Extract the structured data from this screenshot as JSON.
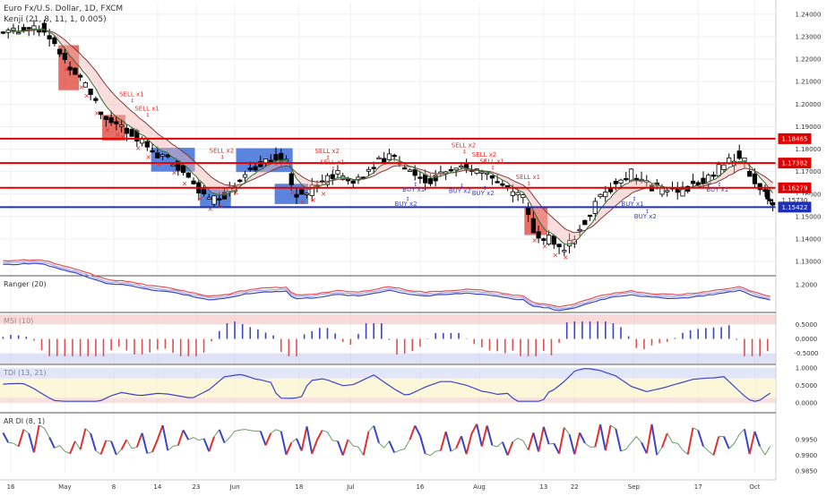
{
  "header": {
    "symbol": "Euro Fx/U.S. Dollar, 1D, FXCM",
    "indicator": "Kenji (21, 8, 11, 1, 0.005)"
  },
  "colors": {
    "bull": "#ffffff",
    "bear": "#000000",
    "wick": "#000000",
    "sell_zone": "#e2574c",
    "buy_zone": "#3d6fd8",
    "level_red": "#e00000",
    "level_blue": "#1f2fb5",
    "ema_slow": "#7a3b3b",
    "ema_fast": "#2e6e2e",
    "panel_red": "#f4c2c2",
    "panel_blue": "#c8cdf2",
    "up_bar": "#3a44c8",
    "down_bar": "#e05050"
  },
  "chart_data": [
    {
      "type": "candlestick",
      "title": "Euro Fx/U.S. Dollar, 1D, FXCM",
      "ylim": [
        1.1245,
        1.2455
      ],
      "y_ticks": [
        "1.24000",
        "1.23000",
        "1.22000",
        "1.21000",
        "1.20000",
        "1.19000",
        "1.18000",
        "1.17000",
        "1.16000",
        "1.15000",
        "1.14000",
        "1.13000"
      ],
      "x_ticks": [
        "16",
        "May",
        "8",
        "14",
        "23",
        "Jun",
        "18",
        "Jul",
        "16",
        "Aug",
        "13",
        "22",
        "Sep",
        "17",
        "Oct"
      ],
      "x_tick_index": [
        3,
        24,
        43,
        60,
        75,
        90,
        115,
        135,
        162,
        185,
        210,
        222,
        245,
        270,
        292
      ],
      "price_labels": [
        {
          "value": 1.18465,
          "text": "1.18465",
          "kind": "red"
        },
        {
          "value": 1.17382,
          "text": "1.17382",
          "kind": "red"
        },
        {
          "value": 1.16279,
          "text": "1.16279",
          "kind": "red"
        },
        {
          "value": 1.1573,
          "text": "1.15730",
          "kind": "plain"
        },
        {
          "value": 1.15422,
          "text": "1.15422",
          "kind": "blue"
        }
      ],
      "levels": [
        {
          "value": 1.18465,
          "color": "red"
        },
        {
          "value": 1.17382,
          "color": "red"
        },
        {
          "value": 1.16279,
          "color": "red"
        },
        {
          "value": 1.15422,
          "color": "blue"
        }
      ],
      "signals": [
        {
          "i": 50,
          "text": "SELL x1",
          "price": 1.2035,
          "kind": "sell"
        },
        {
          "i": 56,
          "text": "SELL x1",
          "price": 1.1972,
          "kind": "sell"
        },
        {
          "i": 85,
          "text": "SELL x2",
          "price": 1.1784,
          "kind": "sell"
        },
        {
          "i": 126,
          "text": "SELL x2",
          "price": 1.1782,
          "kind": "sell"
        },
        {
          "i": 128,
          "text": "SELL x1",
          "price": 1.1732,
          "kind": "sell"
        },
        {
          "i": 160,
          "text": "BUY x1",
          "price": 1.1612,
          "kind": "buy"
        },
        {
          "i": 157,
          "text": "BUY x2",
          "price": 1.1548,
          "kind": "buy"
        },
        {
          "i": 179,
          "text": "SELL x2",
          "price": 1.1808,
          "kind": "sell"
        },
        {
          "i": 187,
          "text": "SELL x2",
          "price": 1.1766,
          "kind": "sell"
        },
        {
          "i": 190,
          "text": "SELL x1",
          "price": 1.1736,
          "kind": "sell"
        },
        {
          "i": 178,
          "text": "BUY x2",
          "price": 1.1606,
          "kind": "buy"
        },
        {
          "i": 187,
          "text": "BUY x2",
          "price": 1.1596,
          "kind": "buy"
        },
        {
          "i": 204,
          "text": "SELL x1",
          "price": 1.1666,
          "kind": "sell"
        },
        {
          "i": 245,
          "text": "BUY x1",
          "price": 1.1548,
          "kind": "buy"
        },
        {
          "i": 250,
          "text": "BUY x2",
          "price": 1.1492,
          "kind": "buy"
        },
        {
          "i": 278,
          "text": "BUY x1",
          "price": 1.1612,
          "kind": "buy"
        }
      ],
      "zones": [
        {
          "i0": 22,
          "i1": 29,
          "hi": 1.2262,
          "lo": 1.2062,
          "kind": "sell"
        },
        {
          "i0": 39,
          "i1": 47,
          "hi": 1.1952,
          "lo": 1.1838,
          "kind": "sell"
        },
        {
          "i0": 58,
          "i1": 74,
          "hi": 1.1806,
          "lo": 1.17,
          "kind": "buy"
        },
        {
          "i0": 77,
          "i1": 88,
          "hi": 1.1622,
          "lo": 1.1538,
          "kind": "buy"
        },
        {
          "i0": 91,
          "i1": 112,
          "hi": 1.1804,
          "lo": 1.1698,
          "kind": "buy"
        },
        {
          "i0": 106,
          "i1": 118,
          "hi": 1.1646,
          "lo": 1.1556,
          "kind": "buy"
        },
        {
          "i0": 203,
          "i1": 211,
          "hi": 1.1544,
          "lo": 1.1418,
          "kind": "sell"
        }
      ]
    },
    {
      "type": "line",
      "title": "Ranger (20)",
      "ylim": [
        1.145,
        1.215
      ],
      "y_ticks": [
        "1.2000"
      ]
    },
    {
      "type": "bar",
      "title": "MSI (10)",
      "ylim": [
        -0.85,
        0.85
      ],
      "y_ticks": [
        "0.5000",
        "0.0000",
        "-0.5000"
      ]
    },
    {
      "type": "line",
      "title": "TDI (13, 21)",
      "ylim": [
        -0.25,
        1.05
      ],
      "y_ticks": [
        "1.0000",
        "0.5000",
        "0.0000"
      ]
    },
    {
      "type": "line",
      "title": "AR DI (8, 1)",
      "ylim": [
        0.9845,
        1.003
      ],
      "y_ticks": [
        "0.9950",
        "0.9900",
        "0.9850"
      ]
    }
  ]
}
